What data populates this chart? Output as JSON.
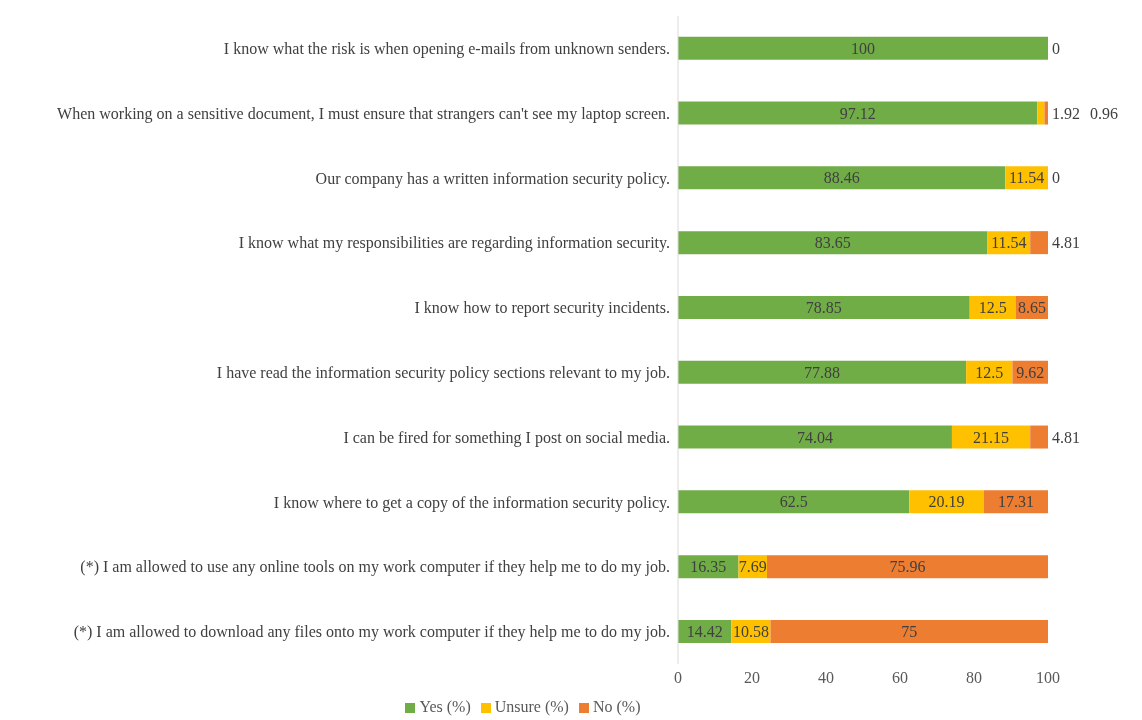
{
  "chart_data": {
    "type": "bar",
    "orientation": "horizontal",
    "stacked": true,
    "legend": "bottom",
    "grid": false,
    "categories": [
      "I know what the risk is when opening e-mails from unknown senders.",
      "When working on a sensitive document, I must ensure that strangers can't see my laptop screen.",
      "Our company has a written information security policy.",
      "I know what my responsibilities are regarding information security.",
      "I know how to report security incidents.",
      "I have read the information security policy sections relevant to my job.",
      "I can be fired for something I post on social media.",
      "I know where to get a copy of the information security policy.",
      "(*) I am allowed to use any online tools on my work computer if they help me to do my job.",
      "(*) I am allowed to download any files onto my work computer if they help me to do my job."
    ],
    "series": [
      {
        "name": "Yes (%)",
        "color": "#70ad47",
        "values": [
          100,
          97.12,
          88.46,
          83.65,
          78.85,
          77.88,
          74.04,
          62.5,
          16.35,
          14.42
        ],
        "value_labels": [
          "100",
          "97.12",
          "88.46",
          "83.65",
          "78.85",
          "77.88",
          "74.04",
          "62.5",
          "16.35",
          "14.42"
        ]
      },
      {
        "name": "Unsure (%)",
        "color": "#ffc000",
        "values": [
          0,
          1.92,
          11.54,
          11.54,
          12.5,
          12.5,
          21.15,
          20.19,
          7.69,
          10.58
        ],
        "value_labels": [
          null,
          "1.92",
          "11.54",
          "11.54",
          "12.5",
          "12.5",
          "21.15",
          "20.19",
          "7.69",
          "10.58"
        ]
      },
      {
        "name": "No (%)",
        "color": "#ed7d31",
        "values": [
          0,
          0.96,
          0,
          4.81,
          8.65,
          9.62,
          4.81,
          17.31,
          75.96,
          75
        ],
        "value_labels": [
          "0",
          "0.96",
          "0",
          "4.81",
          "8.65",
          "9.62",
          "4.81",
          "17.31",
          "75.96",
          "75"
        ]
      }
    ],
    "xlim": [
      0,
      100
    ],
    "xticks": [
      0,
      20,
      40,
      60,
      80,
      100
    ]
  }
}
